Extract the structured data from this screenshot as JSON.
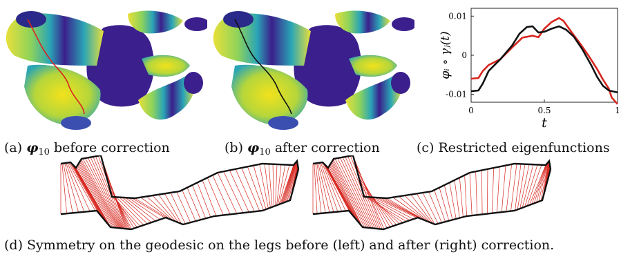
{
  "panels": {
    "a": {
      "caption_prefix": "(a)",
      "caption_symbol": "φ",
      "caption_sub": "10",
      "caption_text": "before correction"
    },
    "b": {
      "caption_prefix": "(b)",
      "caption_symbol": "φ",
      "caption_sub": "10",
      "caption_text": "after correction"
    },
    "c": {
      "caption": "(c) Restricted eigenfunctions"
    },
    "d": {
      "caption": "(d) Symmetry on the geodesic on the legs before (left) and after (right) correction."
    }
  },
  "colors": {
    "red_curve": "#d7261e",
    "black_curve": "#111111",
    "body_low": "#3b1f8c",
    "body_mid": "#1fa5b5",
    "body_high": "#f2e21c"
  },
  "chart_data": {
    "type": "line",
    "xlabel": "t",
    "ylabel": "φᵢ ∘ γⱼ(t)",
    "xlim": [
      0,
      1
    ],
    "ylim": [
      -0.012,
      0.012
    ],
    "xticks": [
      "0",
      "0.5",
      "1"
    ],
    "yticks": [
      "0.01",
      "0",
      "-0.01"
    ],
    "ytick_values": [
      0.01,
      0,
      -0.01
    ],
    "xtick_values": [
      0,
      0.5,
      1
    ],
    "series": [
      {
        "color": "#d7261e",
        "x": [
          0,
          0.05,
          0.08,
          0.12,
          0.2,
          0.28,
          0.35,
          0.42,
          0.46,
          0.5,
          0.55,
          0.6,
          0.63,
          0.68,
          0.74,
          0.8,
          0.86,
          0.9,
          0.94,
          0.96,
          1.0
        ],
        "y": [
          -0.006,
          -0.0058,
          -0.004,
          -0.0025,
          -0.001,
          0.002,
          0.0045,
          0.005,
          0.0046,
          0.0068,
          0.0085,
          0.0095,
          0.0088,
          0.0062,
          0.0032,
          0.0,
          -0.0035,
          -0.0062,
          -0.0085,
          -0.0108,
          -0.0125
        ]
      },
      {
        "color": "#111111",
        "x": [
          0,
          0.05,
          0.08,
          0.12,
          0.2,
          0.28,
          0.33,
          0.38,
          0.42,
          0.46,
          0.5,
          0.55,
          0.6,
          0.65,
          0.7,
          0.76,
          0.82,
          0.86,
          0.9,
          0.94,
          1.0
        ],
        "y": [
          -0.0092,
          -0.009,
          -0.0072,
          -0.004,
          -0.001,
          0.0025,
          0.0055,
          0.0072,
          0.0074,
          0.0058,
          0.006,
          0.0068,
          0.0074,
          0.0065,
          0.0048,
          0.0015,
          -0.0025,
          -0.0055,
          -0.0078,
          -0.009,
          -0.0095
        ]
      }
    ]
  }
}
